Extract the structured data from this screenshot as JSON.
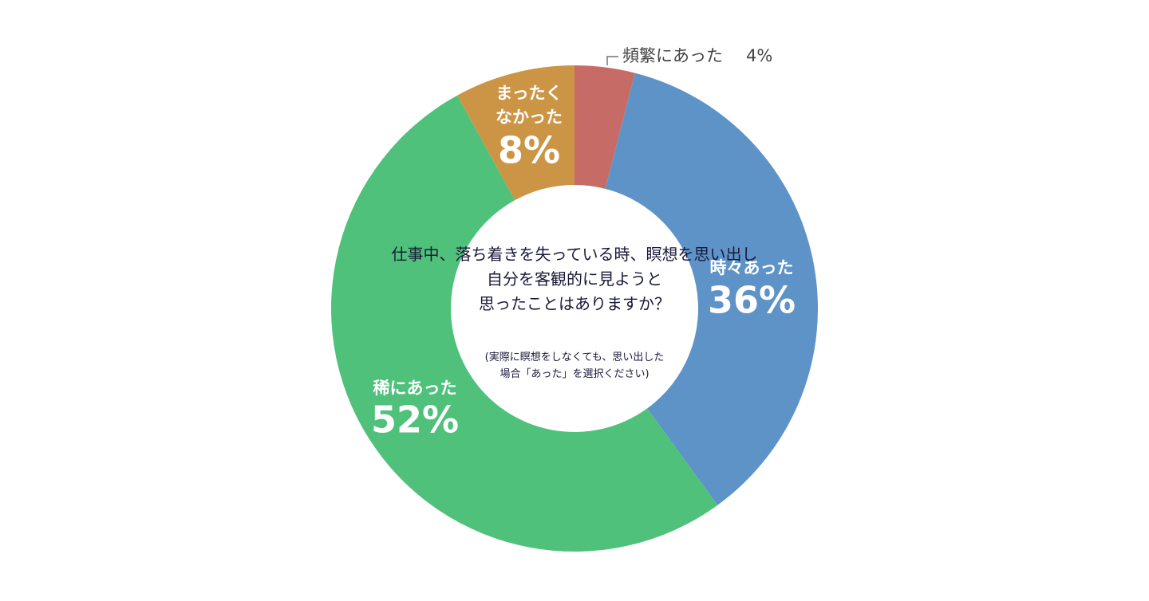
{
  "chart_data": {
    "type": "donut",
    "title": "仕事中、落ち着きを失っている時、瞑想を思い出し\n自分を客観的に見ようと\n思ったことはありますか？",
    "note": "(実際に瞑想をしなくても、思い出した\n場合「あった」を選択ください)",
    "categories": [
      "頻繁にあった",
      "時々あった",
      "稀にあった",
      "まったく\nなかった"
    ],
    "values": [
      4,
      36,
      52,
      8
    ],
    "value_labels": [
      "4%",
      "36%",
      "52%",
      "8%"
    ],
    "colors": [
      "#c76b66",
      "#5e93c8",
      "#4fc17b",
      "#cc9546"
    ]
  }
}
